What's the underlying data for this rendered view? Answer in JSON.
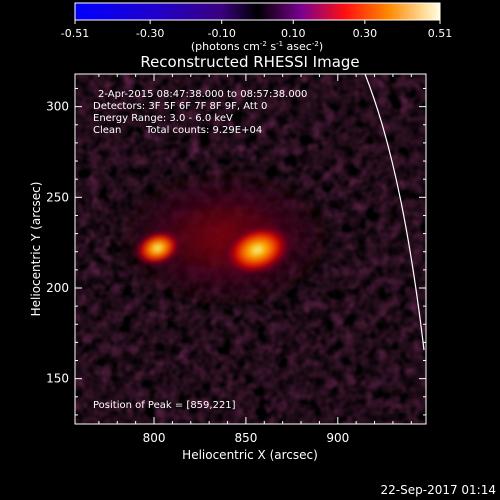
{
  "chart_data": {
    "type": "heatmap",
    "title": "Reconstructed RHESSI Image",
    "xlabel": "Heliocentric X (arcsec)",
    "ylabel": "Heliocentric Y (arcsec)",
    "xlim": [
      757,
      948
    ],
    "ylim": [
      125,
      318
    ],
    "x_ticks": [
      800,
      850,
      900
    ],
    "y_ticks": [
      150,
      200,
      250,
      300
    ],
    "colorbar": {
      "min": -0.51,
      "max": 0.51,
      "ticks": [
        "-0.51",
        "-0.30",
        "-0.10",
        "0.10",
        "0.30",
        "0.51"
      ],
      "units_label": "(photons cm",
      "units_exp1": "-2",
      "units_mid": " s",
      "units_exp2": "-1",
      "units_tail": " asec",
      "units_exp3": "-2",
      "units_close": ")"
    },
    "annotations": {
      "time_range": "2-Apr-2015 08:47:38.000 to 08:57:38.000",
      "detectors": "Detectors: 3F 5F 6F 7F 8F 9F, Att 0",
      "energy_range": "Energy Range: 3.0 - 6.0 keV",
      "method": "Clean",
      "total_counts": "Total counts: 9.29E+04",
      "peak_position": "Position of Peak = [859,221]"
    },
    "sources": [
      {
        "x": 859,
        "y": 221,
        "relative_intensity": 1.0
      },
      {
        "x": 802,
        "y": 222,
        "relative_intensity": 0.65
      }
    ],
    "peak": {
      "x": 859,
      "y": 221,
      "value": 0.51
    }
  },
  "footer": {
    "timestamp": "22-Sep-2017 01:14"
  }
}
